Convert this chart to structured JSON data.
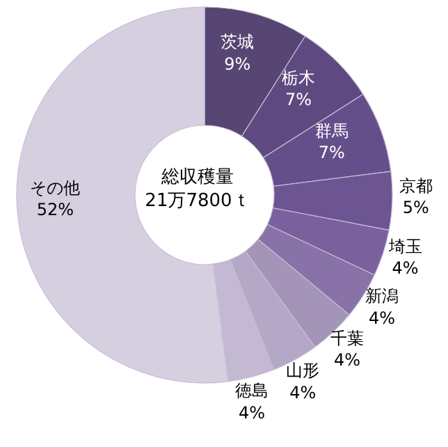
{
  "chart_data": {
    "type": "donut",
    "categories": [
      "茨城",
      "栃木",
      "群馬",
      "京都",
      "埼玉",
      "新潟",
      "千葉",
      "山形",
      "徳島",
      "その他"
    ],
    "values": [
      9,
      7,
      7,
      5,
      4,
      4,
      4,
      4,
      4,
      52
    ],
    "value_labels": [
      "9%",
      "7%",
      "7%",
      "5%",
      "4%",
      "4%",
      "4%",
      "4%",
      "4%",
      "52%"
    ],
    "colors": [
      "#574573",
      "#5e4a80",
      "#654f8a",
      "#6d5592",
      "#7a609c",
      "#8872a8",
      "#a394b8",
      "#b3a8c6",
      "#c3b9d3",
      "#d6cfe0"
    ],
    "annotations": [
      "総収穫量",
      "21万7800ｔ"
    ],
    "legend": false
  }
}
